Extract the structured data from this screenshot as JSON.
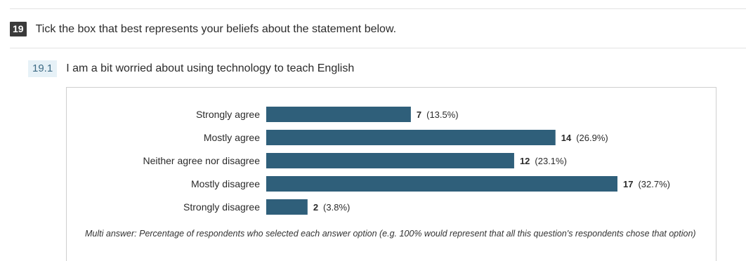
{
  "question": {
    "number": "19",
    "title": "Tick the box that best represents your beliefs about the statement below."
  },
  "subquestion": {
    "number": "19.1",
    "title": "I am a bit worried about using technology to teach English"
  },
  "chart_data": {
    "type": "bar",
    "orientation": "horizontal",
    "categories": [
      "Strongly agree",
      "Mostly agree",
      "Neither agree nor disagree",
      "Mostly disagree",
      "Strongly disagree"
    ],
    "values": [
      7,
      14,
      12,
      17,
      2
    ],
    "percent_labels": [
      "(13.5%)",
      "(26.9%)",
      "(23.1%)",
      "(32.7%)",
      "(3.8%)"
    ],
    "bar_color": "#2f5f7a",
    "xlim": [
      0,
      17
    ],
    "grid": false
  },
  "note": "Multi answer: Percentage of respondents who selected each answer option (e.g. 100% would represent that all this question's respondents chose that option)"
}
